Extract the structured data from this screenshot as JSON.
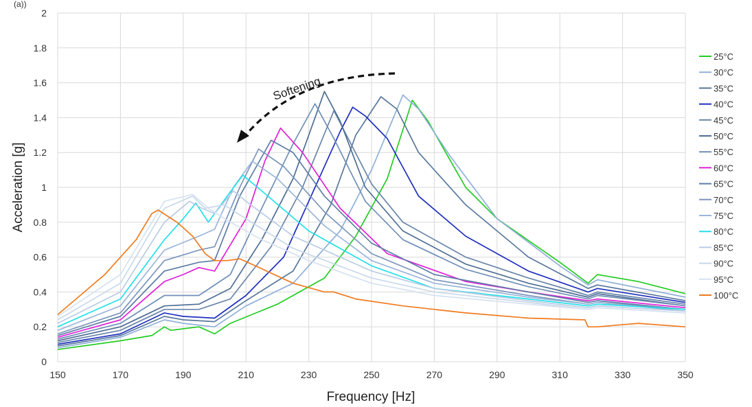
{
  "chart_data": {
    "type": "line",
    "top_text": "(a))",
    "xlabel": "Frequency [Hz]",
    "ylabel": "Acceleration [g]",
    "xlim": [
      150,
      350
    ],
    "ylim": [
      0,
      2
    ],
    "x_ticks": [
      150,
      170,
      190,
      210,
      230,
      250,
      270,
      290,
      310,
      330,
      350
    ],
    "y_ticks": [
      0,
      0.2,
      0.4,
      0.6,
      0.8,
      1,
      1.2,
      1.4,
      1.6,
      1.8,
      2
    ],
    "grid": true,
    "legend_position": "right",
    "annotation": "Softening",
    "series": [
      {
        "name": "25°C",
        "color": "#22cc22",
        "points": [
          [
            150,
            0.07
          ],
          [
            170,
            0.12
          ],
          [
            180,
            0.15
          ],
          [
            184,
            0.2
          ],
          [
            186,
            0.18
          ],
          [
            195,
            0.2
          ],
          [
            200,
            0.16
          ],
          [
            205,
            0.22
          ],
          [
            220,
            0.33
          ],
          [
            235,
            0.48
          ],
          [
            245,
            0.72
          ],
          [
            255,
            1.05
          ],
          [
            263,
            1.5
          ],
          [
            268,
            1.38
          ],
          [
            273,
            1.22
          ],
          [
            280,
            1.0
          ],
          [
            290,
            0.82
          ],
          [
            310,
            0.57
          ],
          [
            319,
            0.45
          ],
          [
            322,
            0.5
          ],
          [
            335,
            0.46
          ],
          [
            350,
            0.39
          ]
        ]
      },
      {
        "name": "30°C",
        "color": "#8fb0d8",
        "points": [
          [
            150,
            0.08
          ],
          [
            170,
            0.14
          ],
          [
            184,
            0.24
          ],
          [
            190,
            0.22
          ],
          [
            200,
            0.2
          ],
          [
            210,
            0.32
          ],
          [
            225,
            0.45
          ],
          [
            240,
            0.75
          ],
          [
            250,
            1.1
          ],
          [
            260,
            1.53
          ],
          [
            265,
            1.45
          ],
          [
            275,
            1.18
          ],
          [
            290,
            0.82
          ],
          [
            310,
            0.55
          ],
          [
            319,
            0.44
          ],
          [
            322,
            0.47
          ],
          [
            350,
            0.37
          ]
        ]
      },
      {
        "name": "35°C",
        "color": "#58779c",
        "points": [
          [
            150,
            0.09
          ],
          [
            170,
            0.15
          ],
          [
            184,
            0.26
          ],
          [
            190,
            0.24
          ],
          [
            200,
            0.23
          ],
          [
            210,
            0.35
          ],
          [
            225,
            0.52
          ],
          [
            237,
            0.9
          ],
          [
            245,
            1.3
          ],
          [
            253,
            1.52
          ],
          [
            258,
            1.45
          ],
          [
            265,
            1.2
          ],
          [
            280,
            0.9
          ],
          [
            300,
            0.6
          ],
          [
            319,
            0.42
          ],
          [
            322,
            0.44
          ],
          [
            350,
            0.35
          ]
        ]
      },
      {
        "name": "40°C",
        "color": "#1f2fbf",
        "points": [
          [
            150,
            0.1
          ],
          [
            170,
            0.16
          ],
          [
            184,
            0.28
          ],
          [
            190,
            0.26
          ],
          [
            200,
            0.25
          ],
          [
            210,
            0.38
          ],
          [
            222,
            0.6
          ],
          [
            232,
            1.0
          ],
          [
            240,
            1.32
          ],
          [
            244,
            1.46
          ],
          [
            248,
            1.41
          ],
          [
            255,
            1.28
          ],
          [
            265,
            0.95
          ],
          [
            280,
            0.72
          ],
          [
            300,
            0.52
          ],
          [
            319,
            0.4
          ],
          [
            322,
            0.42
          ],
          [
            350,
            0.34
          ]
        ]
      },
      {
        "name": "45°C",
        "color": "#6a86aa",
        "points": [
          [
            150,
            0.11
          ],
          [
            170,
            0.18
          ],
          [
            184,
            0.3
          ],
          [
            195,
            0.3
          ],
          [
            205,
            0.36
          ],
          [
            218,
            0.66
          ],
          [
            228,
            1.0
          ],
          [
            238,
            1.44
          ],
          [
            242,
            1.3
          ],
          [
            250,
            1.02
          ],
          [
            260,
            0.8
          ],
          [
            280,
            0.6
          ],
          [
            300,
            0.48
          ],
          [
            319,
            0.38
          ],
          [
            322,
            0.4
          ],
          [
            350,
            0.33
          ]
        ]
      },
      {
        "name": "50°C",
        "color": "#4e6e94",
        "points": [
          [
            150,
            0.12
          ],
          [
            170,
            0.2
          ],
          [
            184,
            0.32
          ],
          [
            195,
            0.33
          ],
          [
            205,
            0.42
          ],
          [
            215,
            0.7
          ],
          [
            225,
            1.05
          ],
          [
            235,
            1.55
          ],
          [
            240,
            1.38
          ],
          [
            248,
            1.0
          ],
          [
            260,
            0.75
          ],
          [
            280,
            0.56
          ],
          [
            300,
            0.45
          ],
          [
            319,
            0.37
          ],
          [
            322,
            0.39
          ],
          [
            350,
            0.32
          ]
        ]
      },
      {
        "name": "55°C",
        "color": "#6f8fb8",
        "points": [
          [
            150,
            0.13
          ],
          [
            170,
            0.22
          ],
          [
            184,
            0.38
          ],
          [
            195,
            0.38
          ],
          [
            205,
            0.5
          ],
          [
            215,
            0.88
          ],
          [
            225,
            1.25
          ],
          [
            232,
            1.48
          ],
          [
            238,
            1.28
          ],
          [
            248,
            0.92
          ],
          [
            260,
            0.7
          ],
          [
            280,
            0.53
          ],
          [
            300,
            0.43
          ],
          [
            319,
            0.36
          ],
          [
            322,
            0.38
          ],
          [
            350,
            0.32
          ]
        ]
      },
      {
        "name": "60°C",
        "color": "#e020d8",
        "points": [
          [
            150,
            0.14
          ],
          [
            170,
            0.24
          ],
          [
            184,
            0.46
          ],
          [
            190,
            0.5
          ],
          [
            195,
            0.54
          ],
          [
            200,
            0.52
          ],
          [
            210,
            0.82
          ],
          [
            216,
            1.15
          ],
          [
            221,
            1.34
          ],
          [
            228,
            1.2
          ],
          [
            240,
            0.88
          ],
          [
            255,
            0.62
          ],
          [
            280,
            0.46
          ],
          [
            300,
            0.4
          ],
          [
            319,
            0.35
          ],
          [
            322,
            0.36
          ],
          [
            350,
            0.31
          ]
        ]
      },
      {
        "name": "65°C",
        "color": "#5c7ca6",
        "points": [
          [
            150,
            0.15
          ],
          [
            170,
            0.26
          ],
          [
            184,
            0.52
          ],
          [
            195,
            0.57
          ],
          [
            200,
            0.58
          ],
          [
            208,
            0.95
          ],
          [
            218,
            1.27
          ],
          [
            225,
            1.2
          ],
          [
            235,
            0.95
          ],
          [
            250,
            0.68
          ],
          [
            270,
            0.5
          ],
          [
            300,
            0.4
          ],
          [
            319,
            0.34
          ],
          [
            322,
            0.35
          ],
          [
            350,
            0.3
          ]
        ]
      },
      {
        "name": "70°C",
        "color": "#7b96bc",
        "points": [
          [
            150,
            0.16
          ],
          [
            170,
            0.28
          ],
          [
            184,
            0.58
          ],
          [
            195,
            0.64
          ],
          [
            200,
            0.66
          ],
          [
            208,
            1.0
          ],
          [
            214,
            1.22
          ],
          [
            222,
            1.12
          ],
          [
            235,
            0.86
          ],
          [
            250,
            0.62
          ],
          [
            270,
            0.47
          ],
          [
            300,
            0.38
          ],
          [
            319,
            0.33
          ],
          [
            322,
            0.34
          ],
          [
            350,
            0.3
          ]
        ]
      },
      {
        "name": "75°C",
        "color": "#9ab6da",
        "points": [
          [
            150,
            0.18
          ],
          [
            170,
            0.32
          ],
          [
            184,
            0.64
          ],
          [
            195,
            0.72
          ],
          [
            200,
            0.76
          ],
          [
            206,
            1.0
          ],
          [
            212,
            1.15
          ],
          [
            220,
            1.05
          ],
          [
            235,
            0.78
          ],
          [
            250,
            0.58
          ],
          [
            270,
            0.45
          ],
          [
            300,
            0.37
          ],
          [
            319,
            0.33
          ],
          [
            322,
            0.34
          ],
          [
            350,
            0.29
          ]
        ]
      },
      {
        "name": "80°C",
        "color": "#22e0e8",
        "points": [
          [
            150,
            0.2
          ],
          [
            170,
            0.36
          ],
          [
            184,
            0.7
          ],
          [
            190,
            0.82
          ],
          [
            194,
            0.91
          ],
          [
            198,
            0.8
          ],
          [
            204,
            0.95
          ],
          [
            209,
            1.07
          ],
          [
            215,
            0.98
          ],
          [
            230,
            0.75
          ],
          [
            250,
            0.55
          ],
          [
            270,
            0.42
          ],
          [
            300,
            0.36
          ],
          [
            319,
            0.32
          ],
          [
            322,
            0.33
          ],
          [
            350,
            0.3
          ]
        ]
      },
      {
        "name": "85°C",
        "color": "#b8cce4",
        "points": [
          [
            150,
            0.22
          ],
          [
            170,
            0.4
          ],
          [
            184,
            0.8
          ],
          [
            192,
            0.92
          ],
          [
            196,
            0.88
          ],
          [
            200,
            0.85
          ],
          [
            206,
            0.98
          ],
          [
            210,
            0.92
          ],
          [
            225,
            0.72
          ],
          [
            250,
            0.52
          ],
          [
            270,
            0.42
          ],
          [
            300,
            0.35
          ],
          [
            319,
            0.31
          ],
          [
            322,
            0.32
          ],
          [
            350,
            0.29
          ]
        ]
      },
      {
        "name": "90°C",
        "color": "#c8d8ea",
        "points": [
          [
            150,
            0.24
          ],
          [
            170,
            0.45
          ],
          [
            184,
            0.88
          ],
          [
            193,
            0.95
          ],
          [
            197,
            0.88
          ],
          [
            203,
            0.9
          ],
          [
            210,
            0.82
          ],
          [
            225,
            0.65
          ],
          [
            250,
            0.48
          ],
          [
            270,
            0.4
          ],
          [
            300,
            0.34
          ],
          [
            319,
            0.3
          ],
          [
            322,
            0.31
          ],
          [
            350,
            0.28
          ]
        ]
      },
      {
        "name": "95°C",
        "color": "#d6e2f0",
        "points": [
          [
            150,
            0.26
          ],
          [
            170,
            0.5
          ],
          [
            184,
            0.92
          ],
          [
            193,
            0.96
          ],
          [
            198,
            0.88
          ],
          [
            205,
            0.8
          ],
          [
            215,
            0.7
          ],
          [
            230,
            0.58
          ],
          [
            250,
            0.45
          ],
          [
            270,
            0.38
          ],
          [
            300,
            0.33
          ],
          [
            319,
            0.3
          ],
          [
            322,
            0.31
          ],
          [
            350,
            0.28
          ]
        ]
      },
      {
        "name": "100°C",
        "color": "#f07a1e",
        "points": [
          [
            150,
            0.27
          ],
          [
            165,
            0.5
          ],
          [
            175,
            0.7
          ],
          [
            180,
            0.85
          ],
          [
            182,
            0.87
          ],
          [
            188,
            0.8
          ],
          [
            193,
            0.72
          ],
          [
            197,
            0.62
          ],
          [
            200,
            0.58
          ],
          [
            204,
            0.58
          ],
          [
            208,
            0.59
          ],
          [
            213,
            0.55
          ],
          [
            225,
            0.45
          ],
          [
            235,
            0.4
          ],
          [
            238,
            0.4
          ],
          [
            245,
            0.36
          ],
          [
            260,
            0.32
          ],
          [
            280,
            0.28
          ],
          [
            300,
            0.25
          ],
          [
            318,
            0.24
          ],
          [
            319,
            0.2
          ],
          [
            322,
            0.2
          ],
          [
            335,
            0.22
          ],
          [
            350,
            0.2
          ]
        ]
      }
    ]
  }
}
